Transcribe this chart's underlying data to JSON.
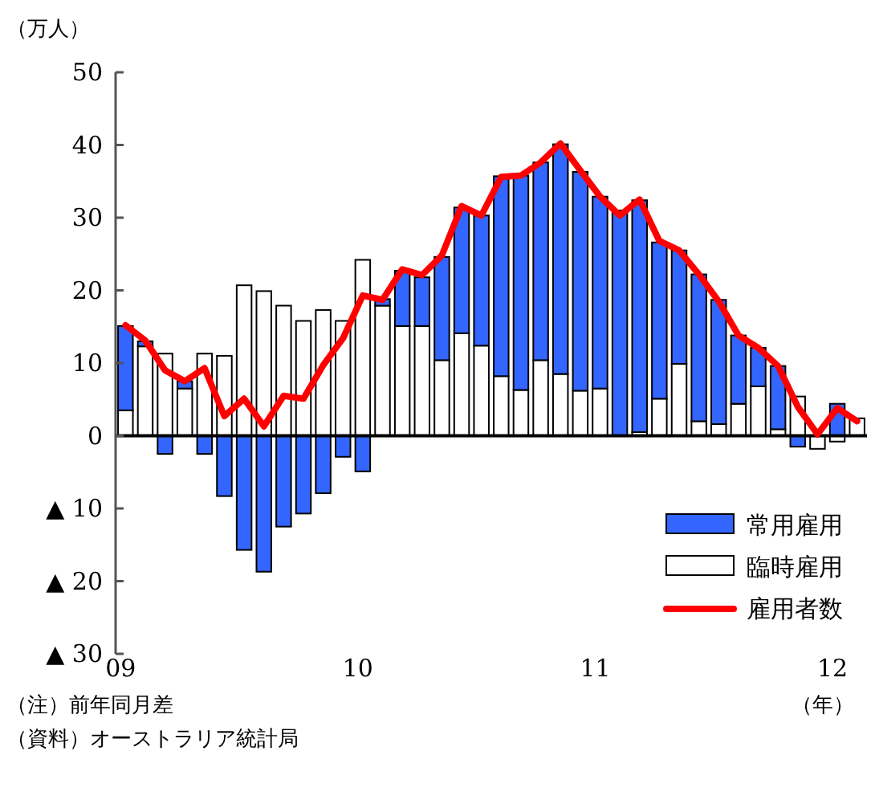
{
  "chart_data": {
    "type": "bar",
    "stacked": true,
    "categories": [
      "09",
      null,
      null,
      null,
      null,
      null,
      null,
      null,
      null,
      null,
      null,
      null,
      "10",
      null,
      null,
      null,
      null,
      null,
      null,
      null,
      null,
      null,
      null,
      null,
      "11",
      null,
      null,
      null,
      null,
      null,
      null,
      null,
      null,
      null,
      null,
      null,
      "12",
      null
    ],
    "series": [
      {
        "name": "臨時雇用",
        "color": "#ffffff",
        "values": [
          3.5,
          12.3,
          11.3,
          6.5,
          11.3,
          11.0,
          20.7,
          19.9,
          17.9,
          15.8,
          17.3,
          15.8,
          24.2,
          17.9,
          15.1,
          15.1,
          10.4,
          14.1,
          12.4,
          8.2,
          6.3,
          10.4,
          8.5,
          6.2,
          6.5,
          0,
          0.5,
          5.1,
          9.9,
          2.0,
          1.6,
          4.4,
          6.8,
          0.9,
          5.4,
          -1.8,
          -0.8,
          2.4
        ]
      },
      {
        "name": "常用雇用",
        "color": "#3366ff",
        "values": [
          11.6,
          0.7,
          -2.5,
          1.0,
          -2.5,
          -8.3,
          -15.7,
          -18.7,
          -12.5,
          -10.7,
          -7.9,
          -2.9,
          -4.9,
          0.9,
          7.6,
          6.7,
          14.2,
          17.3,
          17.9,
          27.5,
          29.5,
          27.2,
          31.6,
          30.1,
          26.4,
          31.0,
          31.9,
          21.5,
          15.6,
          20.2,
          17.1,
          9.4,
          5.3,
          8.7,
          -1.5,
          0,
          4.4,
          0
        ]
      },
      {
        "name": "雇用者数",
        "type": "line",
        "color": "#ff0000",
        "values": [
          15.2,
          13.1,
          9.0,
          7.5,
          9.3,
          2.7,
          5.1,
          1.3,
          5.5,
          5.1,
          9.7,
          13.4,
          19.3,
          18.7,
          22.9,
          22.1,
          24.8,
          31.6,
          30.3,
          35.6,
          35.8,
          37.6,
          40.2,
          36.5,
          32.9,
          30.3,
          32.5,
          26.8,
          25.5,
          22.2,
          18.5,
          13.8,
          12.1,
          9.6,
          4.0,
          0.2,
          3.8,
          2.0
        ]
      }
    ],
    "ylim": [
      -30,
      50
    ],
    "yticks": [
      {
        "value": -30,
        "label": "▲ 30"
      },
      {
        "value": -20,
        "label": "▲ 20"
      },
      {
        "value": -10,
        "label": "▲ 10"
      },
      0,
      10,
      20,
      30,
      40,
      50
    ],
    "ylabel": "（万人）",
    "xlabel": "（年）",
    "legend": "bottom right",
    "annotations": [
      "（注）前年同月差",
      "（資料）オーストラリア統計局"
    ]
  }
}
